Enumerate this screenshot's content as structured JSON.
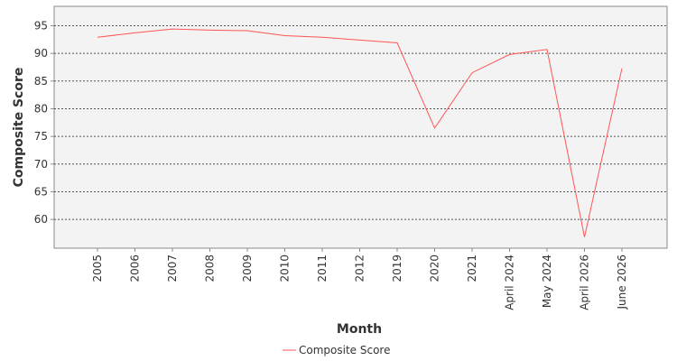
{
  "chart_data": {
    "type": "line",
    "categories": [
      "2005",
      "2006",
      "2007",
      "2008",
      "2009",
      "2010",
      "2011",
      "2012",
      "2019",
      "2020",
      "2021",
      "April 2024",
      "May 2024",
      "April 2026",
      "June 2026"
    ],
    "series": [
      {
        "name": "Composite Score",
        "values": [
          92.9,
          93.7,
          94.4,
          94.2,
          94.1,
          93.2,
          92.9,
          92.4,
          91.9,
          76.5,
          86.5,
          89.8,
          90.7,
          56.8,
          87.3
        ]
      }
    ],
    "xlabel": "Month",
    "ylabel": "Composite Score",
    "ylim": [
      54.8,
      98.5
    ],
    "yticks": [
      60,
      65,
      70,
      75,
      80,
      85,
      90,
      95
    ],
    "grid": true,
    "legend_position": "bottom",
    "colors": {
      "series": "#ff5555",
      "plot_background": "#f3f3f3",
      "gridline": "#555555",
      "axis": "#888888"
    }
  }
}
